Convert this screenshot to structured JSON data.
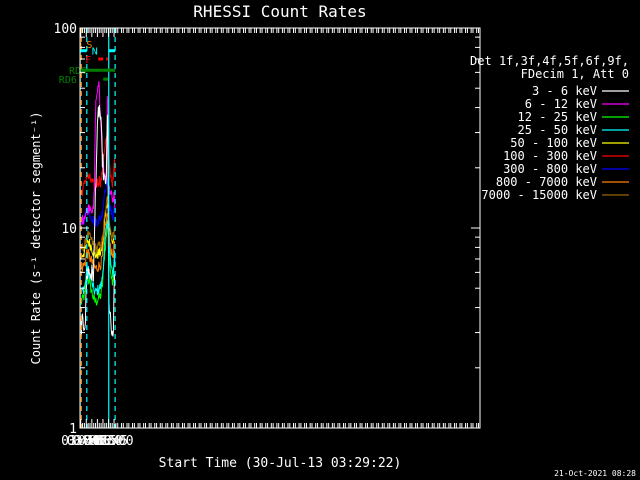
{
  "chart_data": {
    "type": "line",
    "title": "RHESSI Count Rates",
    "xlabel": "Start Time (30-Jul-13 03:29:22)",
    "ylabel": "Count Rate (s⁻¹ detector segment⁻¹)",
    "yscale": "log",
    "xlim_min": [
      208,
      1289
    ],
    "ylim": [
      1,
      100
    ],
    "x_ticks": [
      {
        "label": "03:30",
        "min": 210
      },
      {
        "label": "03:45",
        "min": 225
      },
      {
        "label": "04:00",
        "min": 240
      },
      {
        "label": "04:15",
        "min": 255
      },
      {
        "label": "04:30",
        "min": 270
      },
      {
        "label": "04:45",
        "min": 285
      },
      {
        "label": "05:00",
        "min": 300
      }
    ],
    "y_ticks": [
      {
        "label": "1",
        "value": 1
      },
      {
        "label": "10",
        "value": 10
      },
      {
        "label": "100",
        "value": 100
      }
    ],
    "legend": {
      "placement": "right",
      "header": [
        "Det 1f,3f,4f,5f,6f,9f,",
        "FDecim 1, Att 0"
      ],
      "entries": [
        {
          "label": "3 - 6 keV",
          "color": "#ffffff"
        },
        {
          "label": "6 - 12 keV",
          "color": "#ff00ff"
        },
        {
          "label": "12 - 25 keV",
          "color": "#00ff00"
        },
        {
          "label": "25 - 50 keV",
          "color": "#00ffff"
        },
        {
          "label": "50 - 100 keV",
          "color": "#ffff00"
        },
        {
          "label": "100 - 300 keV",
          "color": "#ff0000"
        },
        {
          "label": "300 - 800 keV",
          "color": "#0000ff"
        },
        {
          "label": "800 - 7000 keV",
          "color": "#ff8000"
        },
        {
          "label": "7000 - 15000 keV",
          "color": "#9a6600"
        }
      ]
    },
    "series": [
      {
        "name": "3 - 6 keV",
        "color": "#ffffff",
        "x": [
          210.5,
          215,
          220,
          223,
          226,
          230,
          235,
          240,
          244,
          247,
          250,
          253,
          256,
          258,
          260,
          262,
          265,
          268,
          271,
          274,
          277,
          280,
          281.5,
          282.5,
          283.3,
          284.2,
          285,
          287,
          290,
          294,
          297,
          299,
          300,
          301,
          302,
          303
        ],
        "y": [
          3.3,
          3.3,
          3.4,
          3.5,
          5.9,
          6.1,
          6.0,
          5.9,
          5.8,
          8.3,
          16,
          24,
          32,
          38,
          40,
          38,
          31,
          24,
          19.5,
          17,
          16,
          20,
          32,
          38,
          32,
          19,
          6.0,
          4.0,
          3.4,
          3.0,
          2.6,
          3.0,
          5.5,
          6.5,
          5.2,
          3.7
        ]
      },
      {
        "name": "6 - 12 keV",
        "color": "#ff00ff",
        "x": [
          210.5,
          215,
          220,
          225,
          230,
          235,
          240,
          244,
          247,
          250,
          253,
          256,
          258,
          259.5,
          261,
          264,
          267,
          270,
          273,
          277,
          280,
          281.5,
          282.5,
          283.3,
          284.2,
          285,
          288,
          291,
          294,
          297,
          299,
          300.5,
          301.5,
          303
        ],
        "y": [
          11,
          11,
          11.5,
          12,
          12.5,
          13,
          12.5,
          12,
          16,
          40,
          46,
          50,
          48,
          58,
          44,
          34,
          27,
          22,
          19,
          17,
          19.5,
          35,
          58,
          40,
          20,
          16,
          15.5,
          15,
          14.5,
          13.5,
          14,
          15,
          13,
          11
        ]
      },
      {
        "name": "12 - 25 keV",
        "color": "#00ff00",
        "x": [
          210.5,
          215,
          220,
          223,
          226,
          230,
          235,
          240,
          244,
          248,
          252,
          256,
          260,
          264,
          268,
          271,
          274,
          277,
          280,
          282,
          284,
          286,
          289,
          292,
          295,
          298,
          300,
          301.5,
          303
        ],
        "y": [
          4.2,
          4.4,
          4.6,
          4.8,
          5.8,
          5.6,
          5.2,
          4.8,
          4.5,
          4.3,
          4.3,
          4.4,
          4.5,
          4.6,
          5.0,
          6.0,
          7.3,
          8.3,
          9.5,
          10.5,
          10,
          8.3,
          6.8,
          6.0,
          5.5,
          5.6,
          6.6,
          7.5,
          5.5
        ]
      },
      {
        "name": "25 - 50 keV",
        "color": "#00ffff",
        "x": [
          210.5,
          215,
          220,
          223,
          226,
          230,
          235,
          240,
          244,
          248,
          252,
          256,
          260,
          264,
          268,
          271,
          274,
          277,
          280,
          282,
          284,
          286,
          289,
          292,
          295,
          298,
          300,
          301.5,
          303
        ],
        "y": [
          4.7,
          4.9,
          5.1,
          5.3,
          6.4,
          6.2,
          5.8,
          5.3,
          5.0,
          4.8,
          4.8,
          4.9,
          5.0,
          5.1,
          5.5,
          6.5,
          8.0,
          9.0,
          10.2,
          11.0,
          10.5,
          8.8,
          7.3,
          6.4,
          5.9,
          6.0,
          7.0,
          7.8,
          6.0
        ]
      },
      {
        "name": "50 - 100 keV",
        "color": "#ffff00",
        "x": [
          210.5,
          215,
          220,
          223,
          226,
          230,
          235,
          240,
          244,
          248,
          252,
          256,
          260,
          264,
          268,
          271,
          274,
          277,
          280,
          282,
          284,
          286,
          289,
          292,
          295,
          298,
          300,
          301.5,
          303
        ],
        "y": [
          7.2,
          7.4,
          7.6,
          7.8,
          8.8,
          8.6,
          8.3,
          8.0,
          7.6,
          7.4,
          7.3,
          7.4,
          7.5,
          7.6,
          8.0,
          9.0,
          10.5,
          11.6,
          12.8,
          13.5,
          13,
          11.3,
          9.8,
          9.0,
          8.5,
          8.6,
          9.5,
          10.3,
          8.4
        ]
      },
      {
        "name": "100 - 300 keV",
        "color": "#ff0000",
        "x": [
          210.5,
          215,
          220,
          223,
          226,
          230,
          235,
          240,
          244,
          248,
          252,
          256,
          260,
          264,
          268,
          271,
          274,
          277,
          280,
          282,
          284,
          286,
          289,
          292,
          295,
          298,
          300,
          301.5,
          303
        ],
        "y": [
          15,
          15.5,
          16.5,
          17.5,
          18.5,
          18,
          17.5,
          17,
          16.5,
          16,
          16.5,
          17,
          17.5,
          17,
          18.5,
          22,
          25,
          27,
          28,
          28,
          27,
          23.5,
          19.5,
          18,
          17,
          17,
          20,
          22,
          17
        ]
      },
      {
        "name": "300 - 800 keV",
        "color": "#0000ff",
        "x": [
          210.5,
          215,
          220,
          223,
          226,
          230,
          235,
          240,
          244,
          248,
          252,
          256,
          260,
          264,
          268,
          271,
          274,
          277,
          280,
          282,
          284,
          286,
          289,
          292,
          295,
          298,
          300,
          301.5,
          303
        ],
        "y": [
          10.5,
          10.8,
          11.2,
          11.6,
          12.5,
          12.2,
          11.8,
          11.4,
          11.0,
          10.8,
          10.8,
          10.9,
          11.0,
          11.2,
          11.8,
          13.2,
          15,
          16.2,
          17,
          17.5,
          16.5,
          14,
          12.6,
          12,
          11.5,
          11.6,
          12.6,
          13.3,
          11
        ]
      },
      {
        "name": "800 - 7000 keV",
        "color": "#ff8000",
        "x": [
          210.5,
          215,
          220,
          223,
          226,
          230,
          235,
          240,
          244,
          248,
          252,
          256,
          260,
          264,
          268,
          271,
          274,
          277,
          280,
          282,
          284,
          286,
          289,
          292,
          295,
          298,
          300,
          301.5,
          303
        ],
        "y": [
          6.2,
          6.4,
          6.6,
          6.8,
          7.6,
          7.4,
          7.1,
          6.8,
          6.5,
          6.3,
          6.3,
          6.4,
          6.5,
          6.6,
          7.0,
          8.0,
          9.3,
          10.2,
          11.2,
          11.8,
          11.3,
          9.8,
          8.5,
          7.8,
          7.3,
          7.4,
          8.2,
          8.8,
          7.0
        ]
      },
      {
        "name": "7000 - 15000 keV",
        "color": "#9a6600",
        "x": [
          210.5,
          215,
          220,
          223,
          226,
          230,
          235,
          240,
          244,
          248,
          252,
          256,
          260,
          264,
          268,
          271,
          274,
          277,
          280,
          282,
          284,
          286,
          289,
          292,
          295,
          298,
          300,
          301.5,
          303
        ],
        "y": [
          7.8,
          8.0,
          8.2,
          8.4,
          9.4,
          9.2,
          8.9,
          8.6,
          8.2,
          8.0,
          7.9,
          8.0,
          8.1,
          8.2,
          8.6,
          9.6,
          11.0,
          12.1,
          13.3,
          14,
          13.5,
          11.8,
          10.3,
          9.5,
          9.0,
          9.1,
          10.0,
          10.7,
          8.9
        ]
      }
    ],
    "vertical_lines": [
      {
        "min": 208.3,
        "color": "#00ffff",
        "style": "solid"
      },
      {
        "min": 211.6,
        "color": "#ff8000",
        "style": "dashed"
      },
      {
        "min": 226.4,
        "color": "#00ffff",
        "style": "dashed"
      },
      {
        "min": 285.7,
        "color": "#00ffff",
        "style": "solid"
      },
      {
        "min": 302.9,
        "color": "#00ffff",
        "style": "dashed"
      }
    ],
    "flag_bars": [
      {
        "label": "S",
        "color": "#ff8000",
        "start_min": 208.3,
        "end_min": 211.6,
        "value": 83
      },
      {
        "label": "N",
        "color": "#00ffff",
        "start_min": 208.3,
        "end_min": 226.4,
        "value": 77
      },
      {
        "label": "N",
        "color": "#00ffff",
        "start_min": 285.7,
        "end_min": 302.9,
        "value": 77
      },
      {
        "label": "F",
        "color": "#ff0000",
        "start_min": 257.3,
        "end_min": 270.4,
        "value": 70
      },
      {
        "label": "",
        "color": "#ff0000",
        "start_min": 278.7,
        "end_min": 283.3,
        "value": 70
      },
      {
        "label": "",
        "color": "#008000",
        "start_min": 208.3,
        "end_min": 269.8,
        "value": 61.5
      },
      {
        "label": "",
        "color": "#008000",
        "start_min": 269.8,
        "end_min": 302.9,
        "value": 61.5
      },
      {
        "label": "RD6",
        "color": "#008000",
        "start_min": 212.5,
        "end_min": 224.2,
        "value": 61.5
      },
      {
        "label": "RD6",
        "color": "#008000",
        "start_min": 223.7,
        "end_min": 224.2,
        "value": 55.5
      },
      {
        "label": "",
        "color": "#008000",
        "start_min": 270.8,
        "end_min": 283.9,
        "value": 55.5
      }
    ]
  },
  "timestamp": "21-Oct-2021 08:28"
}
